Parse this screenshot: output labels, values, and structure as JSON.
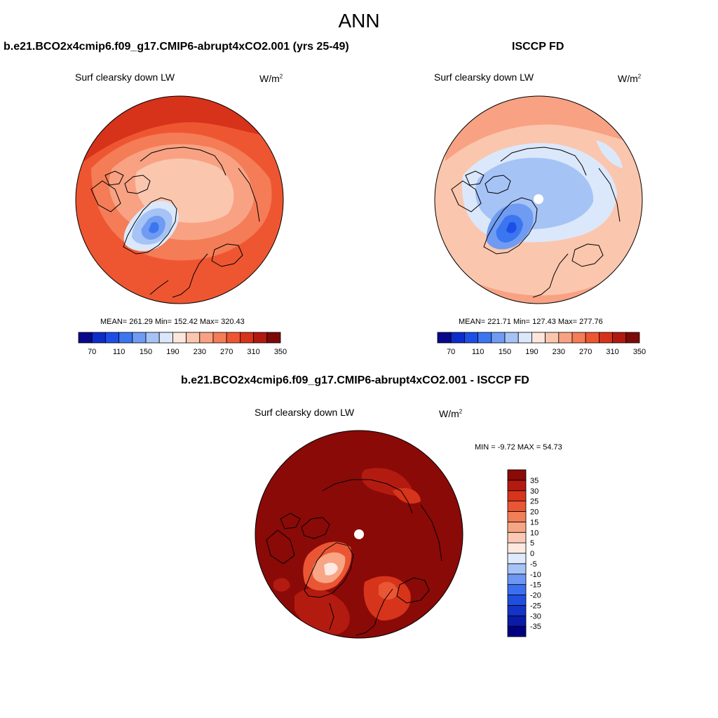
{
  "title": "ANN",
  "panels": [
    {
      "header": "b.e21.BCO2x4cmip6.f09_g17.CMIP6-abrupt4xCO2.001 (yrs 25-49)",
      "variable": "Surf clearsky down LW",
      "units_base": "W/m",
      "units_exp": "2",
      "stats": "MEAN= 261.29  Min= 152.42  Max= 320.43",
      "colorbar_labels": [
        "70",
        "110",
        "150",
        "190",
        "230",
        "270",
        "310",
        "350"
      ]
    },
    {
      "header": "ISCCP FD",
      "variable": "Surf clearsky down LW",
      "units_base": "W/m",
      "units_exp": "2",
      "stats": "MEAN= 221.71  Min= 127.43  Max= 277.76",
      "colorbar_labels": [
        "70",
        "110",
        "150",
        "190",
        "230",
        "270",
        "310",
        "350"
      ]
    },
    {
      "header": "b.e21.BCO2x4cmip6.f09_g17.CMIP6-abrupt4xCO2.001 - ISCCP FD",
      "variable": "Surf clearsky down LW",
      "units_base": "W/m",
      "units_exp": "2",
      "stats": "MIN =  -9.72 MAX =  54.73",
      "colorbar_labels": [
        "35",
        "30",
        "25",
        "20",
        "15",
        "10",
        "5",
        "0",
        "-5",
        "-10",
        "-15",
        "-20",
        "-25",
        "-30",
        "-35"
      ]
    }
  ],
  "palettes": {
    "field": [
      "#08088a",
      "#0c2dc9",
      "#1d4fe6",
      "#3b76f0",
      "#6f9bf2",
      "#a6c3f6",
      "#dbe8fb",
      "#fde6dc",
      "#fbc6ae",
      "#f8a283",
      "#f47c57",
      "#ee5631",
      "#d7321a",
      "#b01a10",
      "#7c0a0a"
    ],
    "diff": [
      "#000080",
      "#0a1ba8",
      "#1434c8",
      "#1f4fe0",
      "#3a6ff0",
      "#6e97f4",
      "#a6c3f7",
      "#dfebfc",
      "#fde9e0",
      "#fbc9b3",
      "#f7a584",
      "#f27e58",
      "#ea5634",
      "#d6341b",
      "#b41b10",
      "#8a0a08"
    ]
  }
}
